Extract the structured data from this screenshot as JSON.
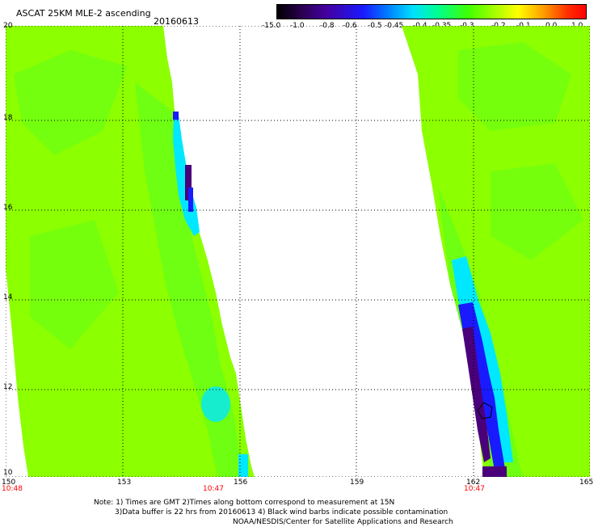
{
  "header": {
    "title": "ASCAT 25KM MLE-2 ascending",
    "date": "20160613"
  },
  "colorbar": {
    "labels": [
      "-15.0",
      "-1.0",
      "-0.8",
      "-0.6",
      "-0.5",
      "-0.45",
      "-0.4",
      "-0.35",
      "-0.3",
      "-0.2",
      "-0.1",
      "0.0",
      "1.0"
    ]
  },
  "map": {
    "lon_labels": [
      "150",
      "153",
      "156",
      "159",
      "162",
      "165"
    ],
    "lat_labels": [
      "20",
      "18",
      "16",
      "14",
      "12",
      "10"
    ],
    "times": [
      "10:48",
      "10:47",
      "10:47"
    ]
  },
  "note": {
    "line1": "Note: 1) Times are GMT 2)Times along bottom correspond to measurement at 15N",
    "line2": "3)Data buffer is 22 hrs from 20160613 4) Black wind barbs indicate possible contamination",
    "line3": "NOAA/NESDIS/Center for Satellite Applications and Research"
  },
  "colors": {
    "swath": "#8cff00",
    "swath_dark": "#55ff20",
    "edge_cyan": "#00e8ff",
    "edge_blue": "#1a1aff",
    "edge_purple": "#4a007a"
  }
}
